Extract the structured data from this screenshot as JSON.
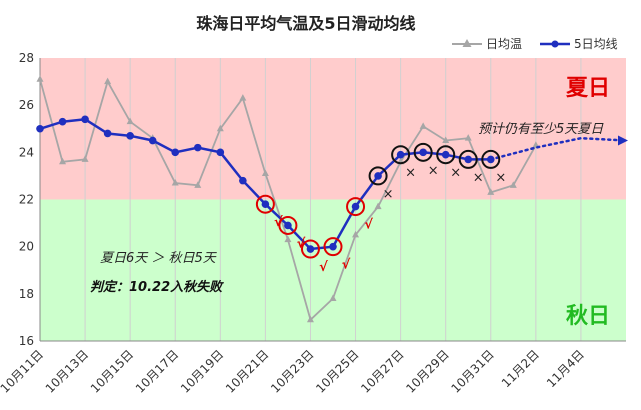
{
  "chart_data": {
    "type": "line",
    "title": "珠海日平均气温及5日滑动均线",
    "x_tick_labels": [
      "10月11日",
      "10月13日",
      "10月15日",
      "10月17日",
      "10月19日",
      "10月21日",
      "10月23日",
      "10月25日",
      "10月27日",
      "10月29日",
      "10月31日",
      "11月2日",
      "11月4日"
    ],
    "x_tick_dates": [
      "2018-10-11",
      "2018-10-13",
      "2018-10-15",
      "2018-10-17",
      "2018-10-19",
      "2018-10-21",
      "2018-10-23",
      "2018-10-25",
      "2018-10-27",
      "2018-10-29",
      "2018-10-31",
      "2018-11-02",
      "2018-11-04"
    ],
    "xlim": [
      "2018-10-11",
      "2018-11-06"
    ],
    "ylim": [
      16,
      28
    ],
    "y_ticks": [
      16,
      18,
      20,
      22,
      24,
      26,
      28
    ],
    "grid": "vertical",
    "legend": {
      "placement": "top-right"
    },
    "series": [
      {
        "name": "日均温",
        "color": "#a6a6a6",
        "marker": "triangle",
        "x": [
          "2018-10-11",
          "2018-10-12",
          "2018-10-13",
          "2018-10-14",
          "2018-10-15",
          "2018-10-16",
          "2018-10-17",
          "2018-10-18",
          "2018-10-19",
          "2018-10-20",
          "2018-10-21",
          "2018-10-22",
          "2018-10-23",
          "2018-10-24",
          "2018-10-25",
          "2018-10-26",
          "2018-10-27",
          "2018-10-28",
          "2018-10-29",
          "2018-10-30",
          "2018-10-31",
          "2018-11-01",
          "2018-11-02"
        ],
        "values": [
          27.1,
          23.6,
          23.7,
          27.0,
          25.3,
          24.6,
          22.7,
          22.6,
          25.0,
          26.3,
          23.1,
          20.3,
          16.9,
          17.8,
          20.5,
          21.7,
          23.6,
          25.1,
          24.5,
          24.6,
          22.3,
          22.6,
          24.3
        ]
      },
      {
        "name": "5日均线",
        "color": "#1f2fbf",
        "marker": "circle",
        "x": [
          "2018-10-11",
          "2018-10-12",
          "2018-10-13",
          "2018-10-14",
          "2018-10-15",
          "2018-10-16",
          "2018-10-17",
          "2018-10-18",
          "2018-10-19",
          "2018-10-20",
          "2018-10-21",
          "2018-10-22",
          "2018-10-23",
          "2018-10-24",
          "2018-10-25",
          "2018-10-26",
          "2018-10-27",
          "2018-10-28",
          "2018-10-29",
          "2018-10-30",
          "2018-10-31"
        ],
        "values": [
          25.0,
          25.3,
          25.4,
          24.8,
          24.7,
          24.5,
          24.0,
          24.2,
          24.0,
          22.8,
          21.8,
          20.9,
          19.9,
          20.0,
          21.7,
          23.0,
          23.9,
          24.0,
          23.9,
          23.7,
          23.7
        ]
      },
      {
        "name": "forecast",
        "color": "#1f2fbf",
        "style": "dotted",
        "x": [
          "2018-10-31",
          "2018-11-02",
          "2018-11-04",
          "2018-11-06"
        ],
        "values": [
          23.7,
          24.2,
          24.6,
          24.5
        ]
      }
    ],
    "zones": [
      {
        "label": "夏日",
        "from": 22,
        "to": 28,
        "fill": "#ffcccc",
        "label_color": "#e00000"
      },
      {
        "label": "秋日",
        "from": 16,
        "to": 22,
        "fill": "#ccffcc",
        "label_color": "#22bb22"
      }
    ],
    "marked_points": {
      "autumn_days": [
        "2018-10-21",
        "2018-10-22",
        "2018-10-23",
        "2018-10-24",
        "2018-10-25"
      ],
      "summer_days": [
        "2018-10-26",
        "2018-10-27",
        "2018-10-28",
        "2018-10-29",
        "2018-10-30",
        "2018-10-31"
      ],
      "check_symbol": "√",
      "cross_symbol": "×"
    },
    "annotations": {
      "comparison": "夏日6天 ＞ 秋日5天",
      "verdict": "判定：10.22入秋失败",
      "forecast": "预计仍有至少5天夏日"
    }
  }
}
